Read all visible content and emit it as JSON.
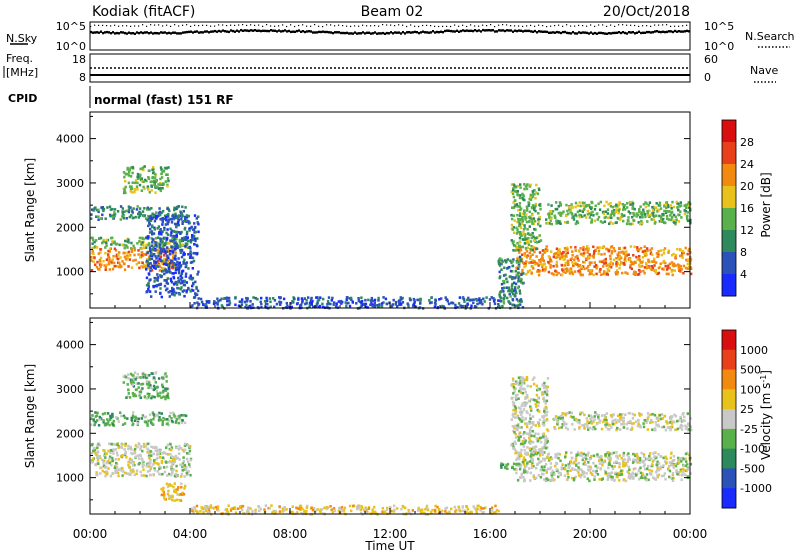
{
  "header": {
    "station": "Kodiak (fitACF)",
    "beam": "Beam 02",
    "date": "20/Oct/2018"
  },
  "strips": {
    "nsky_label": "N.Sky",
    "nsky_ticks": [
      "10^5",
      "10^0"
    ],
    "nsearch_label": "N.Search",
    "nsearch_ticks": [
      "10^5",
      "10^0"
    ],
    "freq_label_1": "Freq.",
    "freq_label_2": "[MHz]",
    "freq_ticks": [
      "18",
      "8"
    ],
    "nave_label": "Nave",
    "nave_ticks": [
      "60",
      "0"
    ],
    "cpid_label": "CPID",
    "cpid_value": "normal (fast) 151 RF"
  },
  "chart_data": [
    {
      "type": "heatmap",
      "panel": "power",
      "ylabel": "Slant Range [km]",
      "y_ticks": [
        1000,
        2000,
        3000,
        4000
      ],
      "ylim": [
        180,
        4600
      ],
      "xlim": [
        0,
        24
      ],
      "colorbar": {
        "label": "Power [dB]",
        "ticks": [
          "4",
          "8",
          "12",
          "16",
          "20",
          "24",
          "28"
        ],
        "colors": [
          "#1a2bff",
          "#2a52b8",
          "#2e8a5c",
          "#5ab04a",
          "#e8c21a",
          "#f28a10",
          "#e8401a",
          "#d90f0f"
        ]
      },
      "regions": [
        {
          "t0": 0.0,
          "t1": 3.8,
          "r0": 2200,
          "r1": 2500,
          "color": "#2e8a5c"
        },
        {
          "t0": 1.3,
          "t1": 3.1,
          "r0": 2800,
          "r1": 3400,
          "color": "#5ab04a"
        },
        {
          "t0": 0.0,
          "t1": 3.9,
          "r0": 1550,
          "r1": 1800,
          "color": "#5ab04a"
        },
        {
          "t0": 0.0,
          "t1": 3.4,
          "r0": 1050,
          "r1": 1550,
          "color": "#f28a10"
        },
        {
          "t0": 2.2,
          "t1": 4.3,
          "r0": 450,
          "r1": 2300,
          "color": "#2a52b8"
        },
        {
          "t0": 4.0,
          "t1": 16.3,
          "r0": 200,
          "r1": 450,
          "color": "#2a52b8"
        },
        {
          "t0": 17.0,
          "t1": 24.0,
          "r0": 950,
          "r1": 1600,
          "color": "#f28a10"
        },
        {
          "t0": 16.8,
          "t1": 18.0,
          "r0": 1500,
          "r1": 3000,
          "color": "#5ab04a"
        },
        {
          "t0": 18.2,
          "t1": 24.0,
          "r0": 2100,
          "r1": 2600,
          "color": "#5ab04a"
        },
        {
          "t0": 16.3,
          "t1": 17.3,
          "r0": 200,
          "r1": 1400,
          "color": "#2e8a5c"
        }
      ]
    },
    {
      "type": "heatmap",
      "panel": "velocity",
      "ylabel": "Slant Range [km]",
      "xlabel": "Time UT",
      "x_ticks": [
        "00:00",
        "04:00",
        "08:00",
        "12:00",
        "16:00",
        "20:00",
        "00:00"
      ],
      "y_ticks": [
        1000,
        2000,
        3000,
        4000
      ],
      "ylim": [
        180,
        4600
      ],
      "xlim": [
        0,
        24
      ],
      "colorbar": {
        "label": "Velocity [m s^-1]",
        "ticks": [
          "1000",
          "500",
          "100",
          "25",
          "-25",
          "-100",
          "-500",
          "-1000"
        ],
        "colors": [
          "#1a2bff",
          "#2a52b8",
          "#2e8a5c",
          "#5ab04a",
          "#c8c8c8",
          "#e8c21a",
          "#f28a10",
          "#e8401a",
          "#d90f0f"
        ]
      },
      "regions": [
        {
          "t0": 0.0,
          "t1": 3.8,
          "r0": 2200,
          "r1": 2500,
          "color": "#5ab04a"
        },
        {
          "t0": 1.3,
          "t1": 3.1,
          "r0": 2800,
          "r1": 3400,
          "color": "#5ab04a"
        },
        {
          "t0": 0.0,
          "t1": 4.0,
          "r0": 1050,
          "r1": 1800,
          "color": "#c8c8c8"
        },
        {
          "t0": 2.8,
          "t1": 3.8,
          "r0": 500,
          "r1": 900,
          "color": "#e8c21a"
        },
        {
          "t0": 4.0,
          "t1": 16.3,
          "r0": 200,
          "r1": 400,
          "color": "#e8c21a"
        },
        {
          "t0": 17.0,
          "t1": 24.0,
          "r0": 950,
          "r1": 1600,
          "color": "#c8c8c8"
        },
        {
          "t0": 16.8,
          "t1": 18.3,
          "r0": 1500,
          "r1": 3300,
          "color": "#c8c8c8"
        },
        {
          "t0": 18.5,
          "t1": 24.0,
          "r0": 2100,
          "r1": 2500,
          "color": "#c8c8c8"
        },
        {
          "t0": 16.4,
          "t1": 17.2,
          "r0": 1200,
          "r1": 1350,
          "color": "#5ab04a"
        }
      ]
    }
  ]
}
